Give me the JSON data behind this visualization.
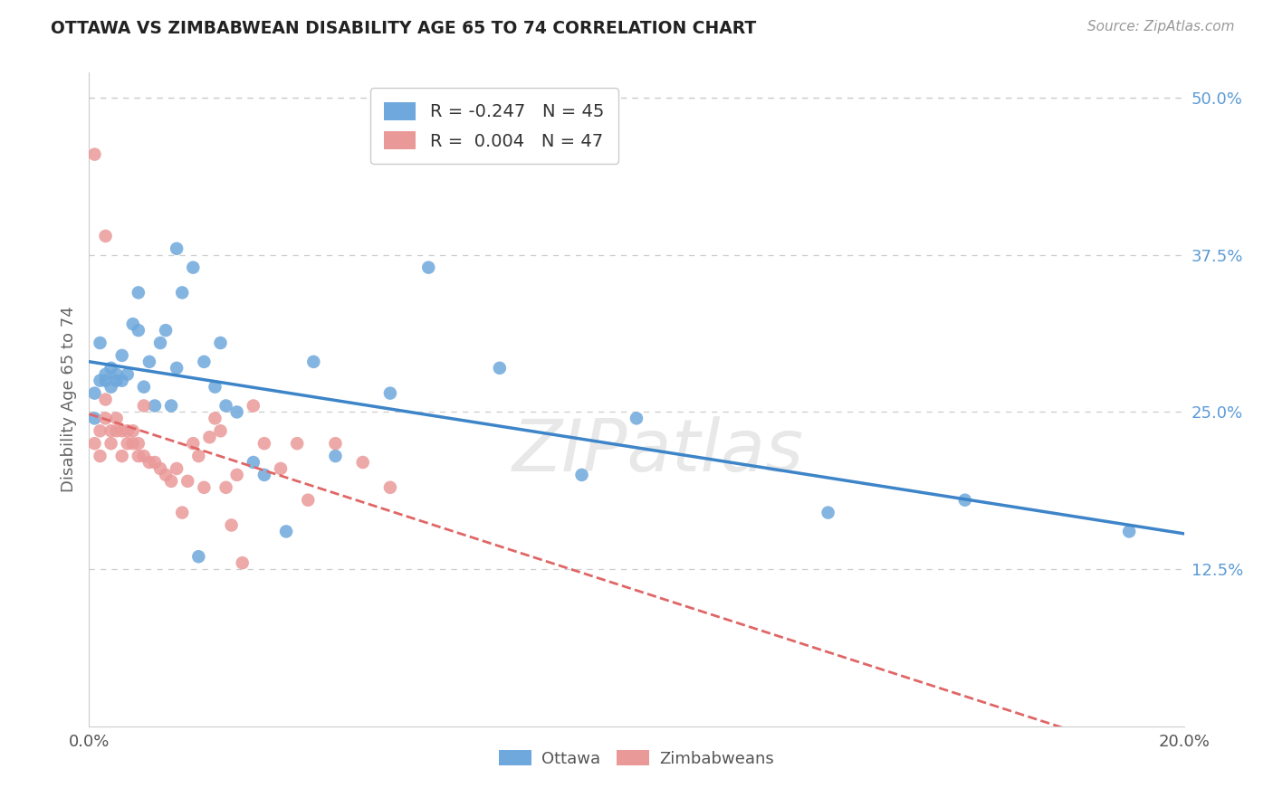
{
  "title": "OTTAWA VS ZIMBABWEAN DISABILITY AGE 65 TO 74 CORRELATION CHART",
  "source": "Source: ZipAtlas.com",
  "ylabel": "Disability Age 65 to 74",
  "xlim": [
    0.0,
    0.2
  ],
  "ylim": [
    0.0,
    0.52
  ],
  "yticks": [
    0.125,
    0.25,
    0.375,
    0.5
  ],
  "ytick_labels": [
    "12.5%",
    "25.0%",
    "37.5%",
    "50.0%"
  ],
  "xticks": [
    0.0,
    0.05,
    0.1,
    0.15,
    0.2
  ],
  "xtick_labels": [
    "0.0%",
    "",
    "",
    "",
    "20.0%"
  ],
  "legend_ottawa_r": "-0.247",
  "legend_ottawa_n": "45",
  "legend_zim_r": "0.004",
  "legend_zim_n": "47",
  "ottawa_color": "#6fa8dc",
  "zim_color": "#ea9999",
  "trend_ottawa_color": "#3d85c8",
  "trend_zim_color": "#e06666",
  "watermark_text": "ZIPatlas",
  "background_color": "#ffffff",
  "grid_color": "#cccccc",
  "ottawa_x": [
    0.001,
    0.001,
    0.002,
    0.002,
    0.003,
    0.003,
    0.004,
    0.004,
    0.005,
    0.005,
    0.006,
    0.006,
    0.007,
    0.008,
    0.009,
    0.009,
    0.01,
    0.011,
    0.012,
    0.013,
    0.014,
    0.015,
    0.016,
    0.017,
    0.019,
    0.021,
    0.023,
    0.024,
    0.025,
    0.027,
    0.03,
    0.032,
    0.036,
    0.041,
    0.045,
    0.055,
    0.062,
    0.075,
    0.09,
    0.1,
    0.135,
    0.16,
    0.19,
    0.016,
    0.02
  ],
  "ottawa_y": [
    0.265,
    0.245,
    0.275,
    0.305,
    0.28,
    0.275,
    0.27,
    0.285,
    0.275,
    0.28,
    0.275,
    0.295,
    0.28,
    0.32,
    0.315,
    0.345,
    0.27,
    0.29,
    0.255,
    0.305,
    0.315,
    0.255,
    0.285,
    0.345,
    0.365,
    0.29,
    0.27,
    0.305,
    0.255,
    0.25,
    0.21,
    0.2,
    0.155,
    0.29,
    0.215,
    0.265,
    0.365,
    0.285,
    0.2,
    0.245,
    0.17,
    0.18,
    0.155,
    0.38,
    0.135
  ],
  "zim_x": [
    0.001,
    0.001,
    0.002,
    0.002,
    0.003,
    0.003,
    0.003,
    0.004,
    0.004,
    0.005,
    0.005,
    0.006,
    0.006,
    0.007,
    0.007,
    0.008,
    0.008,
    0.009,
    0.009,
    0.01,
    0.01,
    0.011,
    0.012,
    0.013,
    0.014,
    0.015,
    0.016,
    0.017,
    0.018,
    0.019,
    0.02,
    0.021,
    0.022,
    0.023,
    0.024,
    0.025,
    0.026,
    0.027,
    0.028,
    0.03,
    0.032,
    0.035,
    0.038,
    0.04,
    0.045,
    0.05,
    0.055
  ],
  "zim_y": [
    0.455,
    0.225,
    0.215,
    0.235,
    0.39,
    0.245,
    0.26,
    0.225,
    0.235,
    0.235,
    0.245,
    0.215,
    0.235,
    0.235,
    0.225,
    0.225,
    0.235,
    0.215,
    0.225,
    0.255,
    0.215,
    0.21,
    0.21,
    0.205,
    0.2,
    0.195,
    0.205,
    0.17,
    0.195,
    0.225,
    0.215,
    0.19,
    0.23,
    0.245,
    0.235,
    0.19,
    0.16,
    0.2,
    0.13,
    0.255,
    0.225,
    0.205,
    0.225,
    0.18,
    0.225,
    0.21,
    0.19
  ]
}
